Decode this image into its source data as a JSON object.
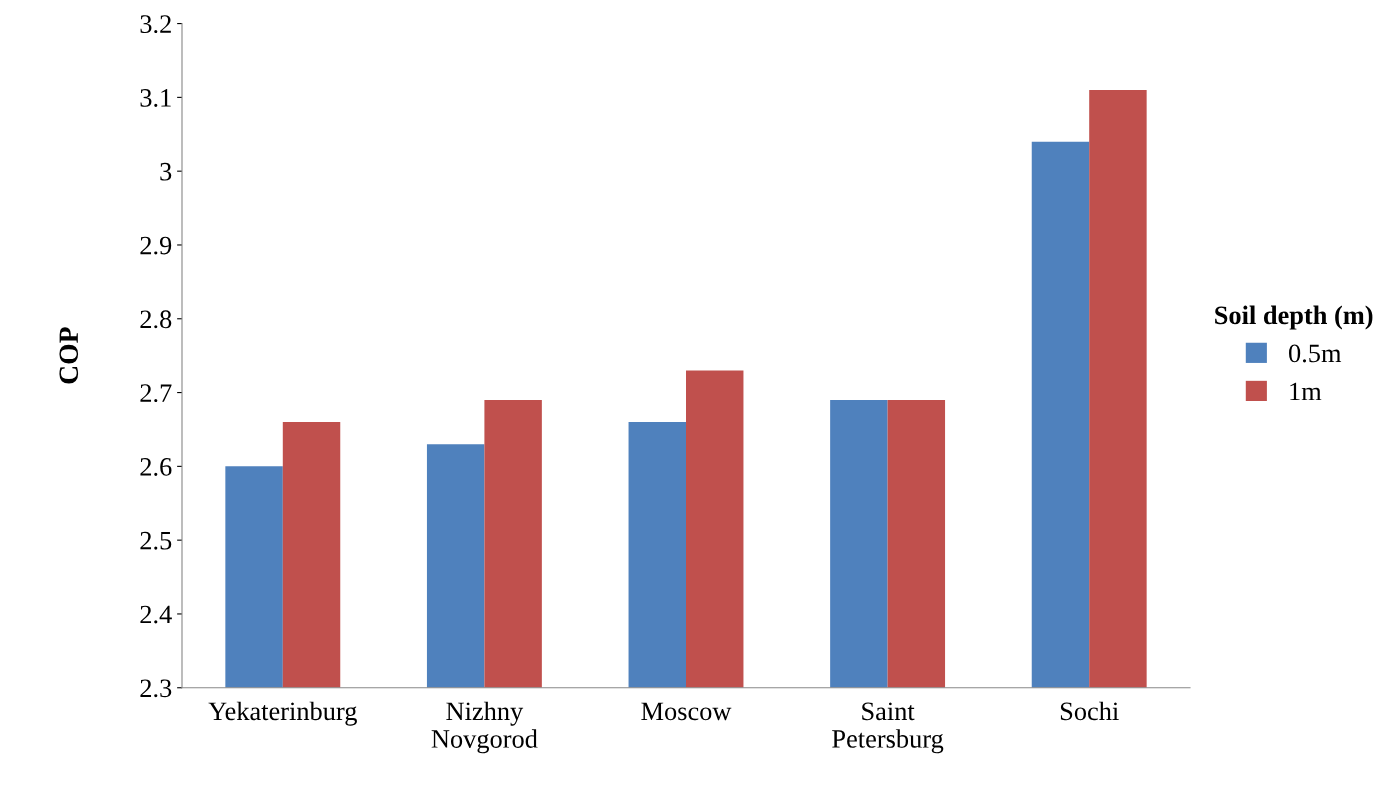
{
  "chart_data": {
    "type": "bar",
    "ylabel": "COP",
    "legend_title": "Soil depth (m)",
    "legend": "right",
    "grid": false,
    "categories": [
      "Yekaterinburg",
      "Nizhny\nNovgorod",
      "Moscow",
      "Saint\nPetersburg",
      "Sochi"
    ],
    "series": [
      {
        "name": "0.5m",
        "color": "#4f81bd",
        "values": [
          2.6,
          2.63,
          2.66,
          2.69,
          3.04
        ]
      },
      {
        "name": "1m",
        "color": "#c0504d",
        "values": [
          2.66,
          2.69,
          2.73,
          2.69,
          3.11
        ]
      }
    ],
    "ylim": [
      2.3,
      3.2
    ],
    "yticks": [
      {
        "value": 2.3,
        "label": "2.3"
      },
      {
        "value": 2.4,
        "label": "2.4"
      },
      {
        "value": 2.5,
        "label": "2.5"
      },
      {
        "value": 2.6,
        "label": "2.6"
      },
      {
        "value": 2.7,
        "label": "2.7"
      },
      {
        "value": 2.8,
        "label": "2.8"
      },
      {
        "value": 2.9,
        "label": "2.9"
      },
      {
        "value": 3.0,
        "label": "3"
      },
      {
        "value": 3.1,
        "label": "3.1"
      },
      {
        "value": 3.2,
        "label": "3.2"
      }
    ]
  }
}
